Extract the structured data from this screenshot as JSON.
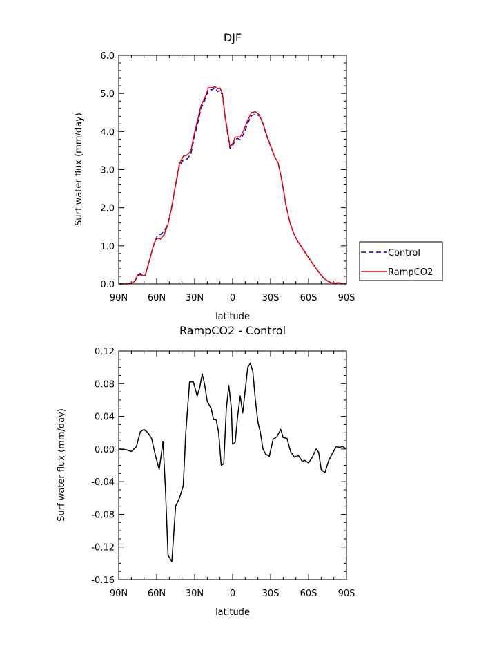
{
  "chart_data": [
    {
      "type": "line",
      "title": "DJF",
      "xlabel": "latitude",
      "ylabel": "Surf water flux (mm/day)",
      "xlim": [
        90,
        -90
      ],
      "ylim": [
        0.0,
        6.0
      ],
      "x_ticks": [
        90,
        60,
        30,
        0,
        -30,
        -60,
        -90
      ],
      "x_tick_labels": [
        "90N",
        "60N",
        "30N",
        "0",
        "30S",
        "60S",
        "90S"
      ],
      "y_ticks": [
        0.0,
        1.0,
        2.0,
        3.0,
        4.0,
        5.0,
        6.0
      ],
      "y_tick_labels": [
        "0.0",
        "1.0",
        "2.0",
        "3.0",
        "4.0",
        "5.0",
        "6.0"
      ],
      "legend": "outside-right",
      "series": [
        {
          "name": "Control",
          "color": "#0000cc",
          "dash": true,
          "x": [
            90,
            84,
            79,
            77,
            75,
            73,
            71,
            69,
            67,
            65,
            63,
            61,
            59,
            57,
            54,
            51,
            48,
            45,
            42,
            39,
            36,
            33,
            30,
            28,
            25,
            22,
            19,
            16,
            14,
            12,
            10,
            8,
            6,
            4,
            2,
            0,
            -2,
            -4,
            -6,
            -9,
            -12,
            -15,
            -18,
            -21,
            -24,
            -27,
            -30,
            -33,
            -36,
            -39,
            -42,
            -45,
            -48,
            -51,
            -54,
            -57,
            -60,
            -63,
            -66,
            -69,
            -72,
            -75,
            -78,
            -81,
            -84,
            -87,
            -90
          ],
          "y": [
            0.0,
            0.0,
            0.03,
            0.08,
            0.22,
            0.25,
            0.2,
            0.22,
            0.45,
            0.7,
            0.95,
            1.15,
            1.3,
            1.3,
            1.38,
            1.6,
            2.05,
            2.6,
            3.1,
            3.25,
            3.28,
            3.4,
            3.9,
            4.15,
            4.6,
            4.82,
            5.1,
            5.1,
            5.15,
            5.05,
            5.08,
            4.95,
            4.4,
            3.95,
            3.55,
            3.62,
            3.78,
            3.82,
            3.78,
            3.95,
            4.22,
            4.42,
            4.45,
            4.42,
            4.2,
            3.88,
            3.62,
            3.35,
            3.18,
            2.7,
            2.1,
            1.65,
            1.35,
            1.15,
            1.0,
            0.85,
            0.7,
            0.55,
            0.4,
            0.28,
            0.15,
            0.08,
            0.03,
            0.02,
            0.03,
            0.01,
            0.0
          ]
        },
        {
          "name": "RampCO2",
          "color": "#e60000",
          "dash": false,
          "x": [
            90,
            84,
            79,
            77,
            75,
            73,
            71,
            69,
            67,
            65,
            63,
            61,
            59,
            57,
            54,
            51,
            48,
            45,
            42,
            39,
            36,
            33,
            30,
            28,
            25,
            22,
            19,
            16,
            14,
            12,
            10,
            8,
            6,
            4,
            2,
            0,
            -2,
            -4,
            -6,
            -9,
            -12,
            -15,
            -18,
            -21,
            -24,
            -27,
            -30,
            -33,
            -36,
            -39,
            -42,
            -45,
            -48,
            -51,
            -54,
            -57,
            -60,
            -63,
            -66,
            -69,
            -72,
            -75,
            -78,
            -81,
            -84,
            -87,
            -90
          ],
          "y": [
            0.0,
            0.0,
            0.03,
            0.09,
            0.24,
            0.28,
            0.22,
            0.23,
            0.47,
            0.7,
            0.96,
            1.15,
            1.2,
            1.18,
            1.3,
            1.57,
            2.02,
            2.62,
            3.15,
            3.35,
            3.38,
            3.48,
            3.98,
            4.25,
            4.68,
            4.88,
            5.15,
            5.15,
            5.18,
            5.12,
            5.14,
            5.0,
            4.42,
            4.0,
            3.6,
            3.68,
            3.85,
            3.86,
            3.85,
            4.05,
            4.3,
            4.5,
            4.52,
            4.44,
            4.22,
            3.9,
            3.63,
            3.36,
            3.18,
            2.7,
            2.1,
            1.65,
            1.35,
            1.14,
            1.0,
            0.84,
            0.69,
            0.55,
            0.4,
            0.28,
            0.15,
            0.08,
            0.03,
            0.02,
            0.03,
            0.01,
            0.0
          ]
        }
      ]
    },
    {
      "type": "line",
      "title": "RampCO2 - Control",
      "xlabel": "latitude",
      "ylabel": "Surf water flux (mm/day)",
      "xlim": [
        90,
        -90
      ],
      "ylim": [
        -0.16,
        0.12
      ],
      "x_ticks": [
        90,
        60,
        30,
        0,
        -30,
        -60,
        -90
      ],
      "x_tick_labels": [
        "90N",
        "60N",
        "30N",
        "0",
        "30S",
        "60S",
        "90S"
      ],
      "y_ticks": [
        -0.16,
        -0.12,
        -0.08,
        -0.04,
        0.0,
        0.04,
        0.08,
        0.12
      ],
      "y_tick_labels": [
        "-0.16",
        "-0.12",
        "-0.08",
        "-0.04",
        "0.00",
        "0.04",
        "0.08",
        "0.12"
      ],
      "series": [
        {
          "color": "#000000",
          "x": [
            90,
            84,
            80,
            78,
            76,
            73,
            70,
            67,
            64,
            61,
            58,
            55,
            53,
            51,
            48,
            45,
            42,
            39,
            37,
            34,
            31,
            28,
            26,
            24,
            22,
            20,
            17,
            15,
            13,
            11,
            9,
            7,
            5,
            3,
            1,
            0,
            -2,
            -4,
            -6,
            -8,
            -10,
            -12,
            -14,
            -16,
            -18,
            -20,
            -22,
            -24,
            -26,
            -29,
            -32,
            -35,
            -38,
            -40,
            -43,
            -46,
            -49,
            -52,
            -55,
            -57,
            -60,
            -63,
            -66,
            -68,
            -70,
            -73,
            -76,
            -79,
            -82,
            -84,
            -87,
            -90
          ],
          "y": [
            0.0,
            -0.001,
            -0.003,
            0.0,
            0.003,
            0.021,
            0.024,
            0.02,
            0.013,
            -0.008,
            -0.025,
            0.009,
            -0.05,
            -0.13,
            -0.138,
            -0.07,
            -0.06,
            -0.045,
            0.02,
            0.082,
            0.082,
            0.065,
            0.075,
            0.092,
            0.078,
            0.058,
            0.05,
            0.036,
            0.036,
            0.02,
            -0.02,
            -0.018,
            0.048,
            0.078,
            0.05,
            0.006,
            0.008,
            0.04,
            0.065,
            0.044,
            0.072,
            0.1,
            0.105,
            0.095,
            0.06,
            0.033,
            0.02,
            0.0,
            -0.006,
            -0.009,
            0.012,
            0.015,
            0.024,
            0.014,
            0.013,
            -0.004,
            -0.01,
            -0.008,
            -0.015,
            -0.014,
            -0.017,
            -0.01,
            0.0,
            -0.004,
            -0.025,
            -0.029,
            -0.014,
            -0.005,
            0.003,
            0.002,
            0.003,
            0.0
          ]
        }
      ]
    }
  ]
}
